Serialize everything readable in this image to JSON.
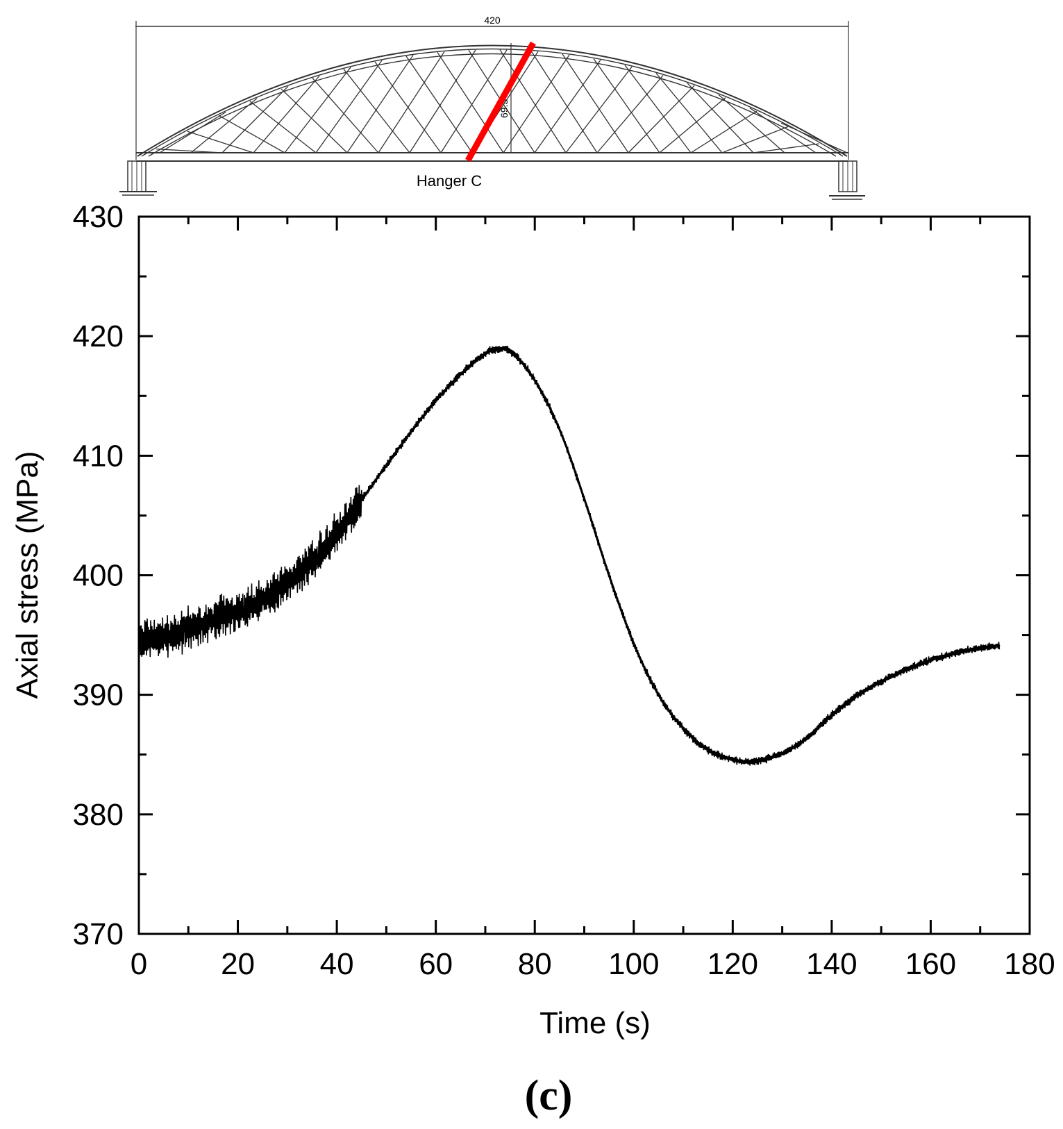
{
  "diagram": {
    "span_label": "420",
    "rise_label": "69.3",
    "hanger_label": "Hanger C",
    "hanger_color": "#ff0000",
    "line_color": "#333333"
  },
  "chart_data": {
    "type": "line",
    "xlabel": "Time (s)",
    "ylabel": "Axial stress (MPa)",
    "xlim": [
      0,
      180
    ],
    "ylim": [
      370,
      430
    ],
    "xticks": [
      0,
      20,
      40,
      60,
      80,
      100,
      120,
      140,
      160,
      180
    ],
    "yticks": [
      370,
      380,
      390,
      400,
      410,
      420,
      430
    ],
    "series": [
      {
        "name": "Hanger C",
        "color": "#000000",
        "x": [
          0,
          5,
          10,
          15,
          20,
          25,
          30,
          35,
          40,
          45,
          50,
          55,
          60,
          65,
          70,
          72,
          75,
          80,
          85,
          90,
          95,
          100,
          105,
          110,
          115,
          120,
          123,
          125,
          130,
          135,
          140,
          145,
          150,
          155,
          160,
          165,
          170,
          174
        ],
        "y": [
          394.5,
          394.8,
          395.5,
          396.3,
          397.0,
          398.0,
          399.4,
          401.2,
          403.5,
          406.3,
          409.2,
          412.0,
          414.6,
          416.8,
          418.5,
          418.9,
          418.7,
          416.3,
          412.2,
          406.4,
          400.0,
          394.3,
          390.0,
          387.2,
          385.4,
          384.6,
          384.4,
          384.5,
          385.1,
          386.4,
          388.3,
          389.9,
          391.1,
          392.1,
          392.9,
          393.5,
          393.9,
          394.1
        ]
      }
    ],
    "panel_label": "(c)"
  }
}
